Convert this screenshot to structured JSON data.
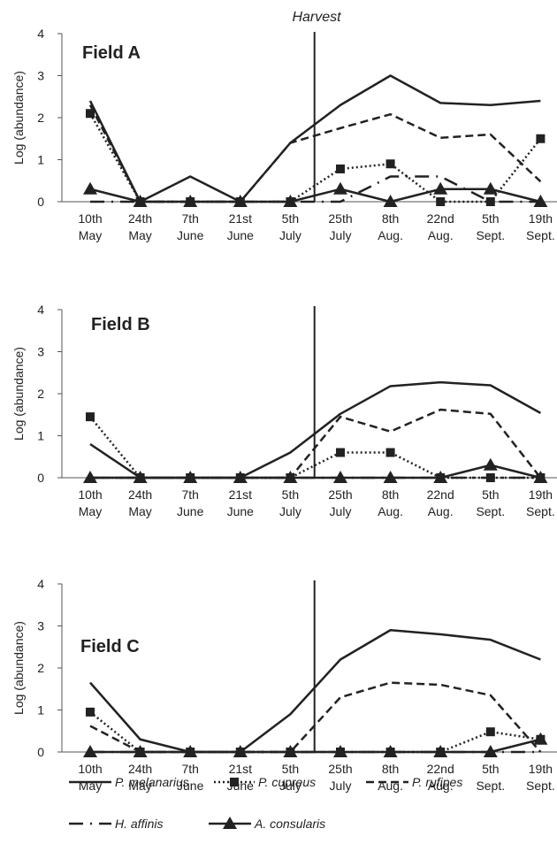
{
  "annotation": "Harvest",
  "categories": [
    [
      "10th",
      "May"
    ],
    [
      "24th",
      "May"
    ],
    [
      "7th",
      "June"
    ],
    [
      "21st",
      "June"
    ],
    [
      "5th",
      "July"
    ],
    [
      "25th",
      "July"
    ],
    [
      "8th",
      "Aug."
    ],
    [
      "22nd",
      "Aug."
    ],
    [
      "5th",
      "Sept."
    ],
    [
      "19th",
      "Sept."
    ]
  ],
  "species": [
    {
      "key": "mel",
      "name": "P. melanarius",
      "style": "solid",
      "marker": "none",
      "color": "#222222"
    },
    {
      "key": "cup",
      "name": "P. cupreus",
      "style": "dotted",
      "marker": "square",
      "color": "#222222"
    },
    {
      "key": "ruf",
      "name": "P. rufipes",
      "style": "dashed",
      "marker": "none",
      "color": "#222222"
    },
    {
      "key": "aff",
      "name": "H. affinis",
      "style": "longdash-dot",
      "marker": "none",
      "color": "#222222"
    },
    {
      "key": "con",
      "name": "A. consularis",
      "style": "solid",
      "marker": "triangle",
      "color": "#222222"
    }
  ],
  "chart_data": [
    {
      "type": "line",
      "title": "Field A",
      "ylabel": "Log (abundance)",
      "ylim": [
        0,
        4
      ],
      "yticks": [
        0,
        1,
        2,
        3,
        4
      ],
      "harvest_between": [
        4,
        5
      ],
      "series": [
        {
          "name": "P. melanarius",
          "values": [
            2.4,
            0,
            0.6,
            0,
            1.4,
            2.3,
            3.0,
            2.35,
            2.3,
            2.4
          ]
        },
        {
          "name": "P. cupreus",
          "values": [
            2.1,
            0,
            0,
            0,
            0,
            0.78,
            0.9,
            0,
            0,
            1.5
          ]
        },
        {
          "name": "P. rufipes",
          "values": [
            2.3,
            0,
            0,
            0,
            1.4,
            1.75,
            2.08,
            1.52,
            1.6,
            0.48
          ]
        },
        {
          "name": "H. affinis",
          "values": [
            0,
            0,
            0,
            0,
            0,
            0,
            0.6,
            0.6,
            0,
            0
          ]
        },
        {
          "name": "A. consularis",
          "values": [
            0.3,
            0,
            0,
            0,
            0,
            0.3,
            0,
            0.3,
            0.3,
            0
          ]
        }
      ]
    },
    {
      "type": "line",
      "title": "Field B",
      "ylabel": "Log (abundance)",
      "ylim": [
        0,
        4
      ],
      "yticks": [
        0,
        1,
        2,
        3,
        4
      ],
      "harvest_between": [
        4,
        5
      ],
      "series": [
        {
          "name": "P. melanarius",
          "values": [
            0.8,
            0,
            0,
            0,
            0.6,
            1.52,
            2.18,
            2.27,
            2.2,
            1.54
          ]
        },
        {
          "name": "P. cupreus",
          "values": [
            1.45,
            0,
            0,
            0,
            0,
            0.6,
            0.6,
            0,
            0,
            0
          ]
        },
        {
          "name": "P. rufipes",
          "values": [
            0,
            0,
            0,
            0,
            0,
            1.45,
            1.1,
            1.62,
            1.52,
            0
          ]
        },
        {
          "name": "H. affinis",
          "values": [
            0,
            0,
            0,
            0,
            0,
            0,
            0,
            0,
            0,
            0
          ]
        },
        {
          "name": "A. consularis",
          "values": [
            0,
            0,
            0,
            0,
            0,
            0,
            0,
            0,
            0.3,
            0
          ]
        }
      ]
    },
    {
      "type": "line",
      "title": "Field C",
      "ylabel": "Log (abundance)",
      "ylim": [
        0,
        4
      ],
      "yticks": [
        0,
        1,
        2,
        3,
        4
      ],
      "harvest_between": [
        4,
        5
      ],
      "series": [
        {
          "name": "P. melanarius",
          "values": [
            1.65,
            0.3,
            0,
            0,
            0.9,
            2.2,
            2.9,
            2.8,
            2.67,
            2.2
          ]
        },
        {
          "name": "P. cupreus",
          "values": [
            0.95,
            0,
            0,
            0,
            0,
            0,
            0,
            0,
            0.48,
            0.3
          ]
        },
        {
          "name": "P. rufipes",
          "values": [
            0.62,
            0,
            0,
            0,
            0,
            1.3,
            1.65,
            1.6,
            1.35,
            0
          ]
        },
        {
          "name": "H. affinis",
          "values": [
            0,
            0,
            0,
            0,
            0,
            0,
            0,
            0,
            0,
            0
          ]
        },
        {
          "name": "A. consularis",
          "values": [
            0,
            0,
            0,
            0,
            0,
            0,
            0,
            0,
            0,
            0.3
          ]
        }
      ]
    }
  ]
}
